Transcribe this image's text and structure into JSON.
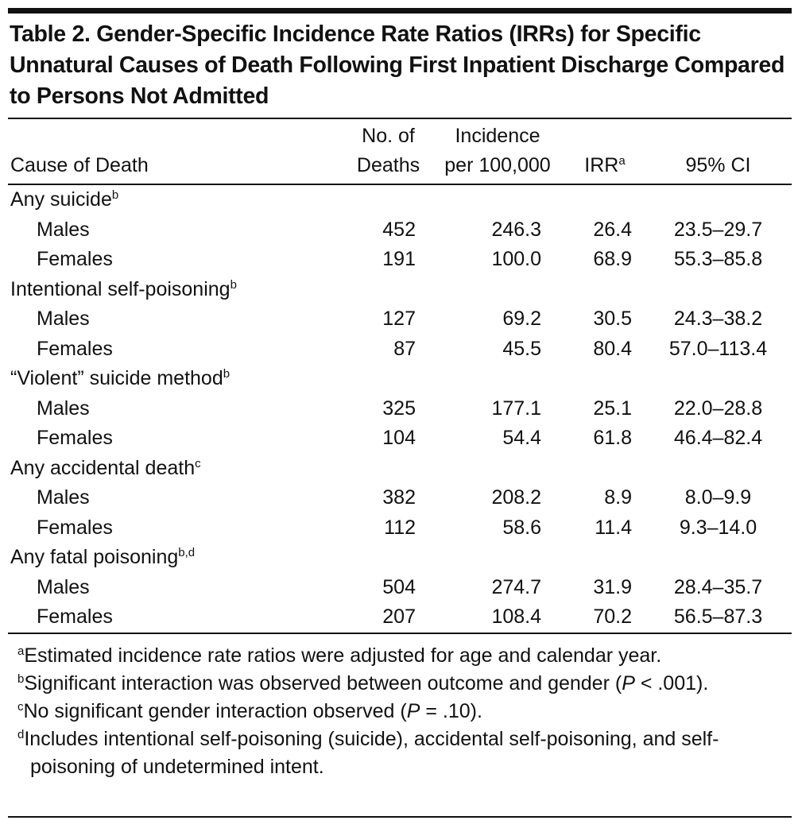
{
  "table": {
    "title": "Table 2. Gender-Specific Incidence Rate Ratios (IRRs) for Specific Unnatural Causes of Death Following First Inpatient Discharge Compared to Persons Not Admitted",
    "columns": [
      {
        "lines": [
          "Cause of Death"
        ]
      },
      {
        "lines": [
          "No. of",
          "Deaths"
        ]
      },
      {
        "lines": [
          "Incidence",
          "per 100,000"
        ]
      },
      {
        "lines": [
          "IRR"
        ],
        "sup": "a"
      },
      {
        "lines": [
          "95% CI"
        ]
      }
    ],
    "groups": [
      {
        "label": "Any suicide",
        "sup": "b",
        "rows": [
          [
            "Males",
            "452",
            "246.3",
            "26.4",
            "23.5–29.7"
          ],
          [
            "Females",
            "191",
            "100.0",
            "68.9",
            "55.3–85.8"
          ]
        ]
      },
      {
        "label": "Intentional self-poisoning",
        "sup": "b",
        "rows": [
          [
            "Males",
            "127",
            "69.2",
            "30.5",
            "24.3–38.2"
          ],
          [
            "Females",
            "87",
            "45.5",
            "80.4",
            "57.0–113.4"
          ]
        ]
      },
      {
        "label": "“Violent” suicide method",
        "sup": "b",
        "rows": [
          [
            "Males",
            "325",
            "177.1",
            "25.1",
            "22.0–28.8"
          ],
          [
            "Females",
            "104",
            "54.4",
            "61.8",
            "46.4–82.4"
          ]
        ]
      },
      {
        "label": "Any accidental death",
        "sup": "c",
        "rows": [
          [
            "Males",
            "382",
            "208.2",
            "8.9",
            "8.0–9.9"
          ],
          [
            "Females",
            "112",
            "58.6",
            "11.4",
            "9.3–14.0"
          ]
        ]
      },
      {
        "label": "Any fatal poisoning",
        "sup": "b,d",
        "rows": [
          [
            "Males",
            "504",
            "274.7",
            "31.9",
            "28.4–35.7"
          ],
          [
            "Females",
            "207",
            "108.4",
            "70.2",
            "56.5–87.3"
          ]
        ]
      }
    ],
    "footnotes": [
      {
        "mark": "a",
        "parts": [
          {
            "text": "Estimated incidence rate ratios were adjusted for age and calendar year."
          }
        ]
      },
      {
        "mark": "b",
        "parts": [
          {
            "text": "Significant interaction was observed between outcome and gender ("
          },
          {
            "text": "P",
            "italic": true
          },
          {
            "text": " < .001)."
          }
        ]
      },
      {
        "mark": "c",
        "parts": [
          {
            "text": "No significant gender interaction observed ("
          },
          {
            "text": "P",
            "italic": true
          },
          {
            "text": " = .10)."
          }
        ]
      },
      {
        "mark": "d",
        "parts": [
          {
            "text": "Includes intentional self-poisoning (suicide), accidental self-poisoning, and self-poisoning of undetermined intent."
          }
        ]
      }
    ]
  }
}
